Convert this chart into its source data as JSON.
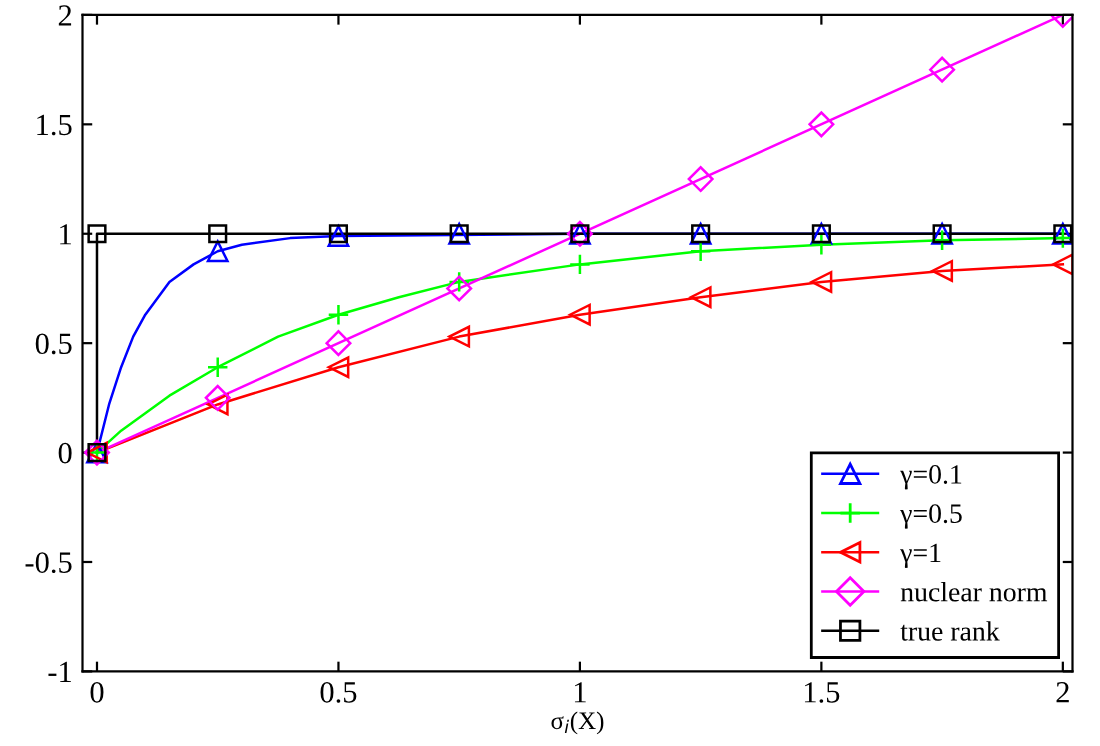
{
  "chart_data": {
    "type": "line",
    "xlabel": "σ$_{i}$(X)",
    "xlim": [
      -0.03,
      2.02
    ],
    "ylim": [
      -1,
      2
    ],
    "xticks": [
      0,
      0.5,
      1,
      1.5,
      2
    ],
    "yticks": [
      -1,
      -0.5,
      0,
      0.5,
      1,
      1.5,
      2
    ],
    "grid": false,
    "legend": "bottom right",
    "series": [
      {
        "color": "#0000ff",
        "x": [
          0,
          0.025,
          0.05,
          0.075,
          0.1,
          0.15,
          0.2,
          0.25,
          0.3,
          0.4,
          0.5,
          1,
          2
        ],
        "values": [
          0,
          0.22,
          0.39,
          0.53,
          0.63,
          0.78,
          0.86,
          0.92,
          0.95,
          0.98,
          0.99,
          1,
          1
        ]
      },
      {
        "color": "#00ff00",
        "x": [
          0,
          0.05,
          0.1,
          0.15,
          0.25,
          0.375,
          0.5,
          0.625,
          0.75,
          1,
          1.25,
          1.5,
          1.75,
          2
        ],
        "values": [
          0,
          0.1,
          0.18,
          0.26,
          0.39,
          0.53,
          0.63,
          0.71,
          0.78,
          0.86,
          0.92,
          0.95,
          0.97,
          0.98
        ]
      },
      {
        "color": "#ff0000",
        "x": [
          0,
          0.25,
          0.5,
          0.75,
          1,
          1.25,
          1.5,
          1.75,
          2
        ],
        "values": [
          0,
          0.22,
          0.39,
          0.53,
          0.63,
          0.71,
          0.78,
          0.83,
          0.86
        ]
      },
      {
        "color": "#ff00ff",
        "x": [
          0,
          2
        ],
        "values": [
          0,
          2
        ]
      },
      {
        "color": "#000000",
        "x": [
          0,
          0,
          2
        ],
        "values": [
          0,
          1,
          1
        ]
      },
      {
        "type": "scatter",
        "name": "γ=0.1",
        "color": "#0000ff",
        "marker": "triangle",
        "x": [
          0,
          0.25,
          0.5,
          0.75,
          1,
          1.25,
          1.5,
          1.75,
          2
        ],
        "values": [
          0,
          0.92,
          0.99,
          1,
          1,
          1,
          1,
          1,
          1
        ]
      },
      {
        "type": "scatter",
        "name": "γ=0.5",
        "color": "#00ff00",
        "marker": "cross",
        "x": [
          0,
          0.25,
          0.5,
          0.75,
          1,
          1.25,
          1.5,
          1.75,
          2
        ],
        "values": [
          0,
          0.39,
          0.63,
          0.78,
          0.86,
          0.92,
          0.95,
          0.97,
          0.98
        ]
      },
      {
        "type": "scatter",
        "name": "γ=1",
        "color": "#ff0000",
        "marker": "triangle_left",
        "x": [
          0,
          0.25,
          0.5,
          0.75,
          1,
          1.25,
          1.5,
          1.75,
          2
        ],
        "values": [
          0,
          0.22,
          0.39,
          0.53,
          0.63,
          0.71,
          0.78,
          0.83,
          0.86
        ]
      },
      {
        "type": "scatter",
        "name": "nuclear norm",
        "color": "#ff00ff",
        "marker": "diamond",
        "x": [
          0,
          0.25,
          0.5,
          0.75,
          1,
          1.25,
          1.5,
          1.75,
          2
        ],
        "values": [
          0,
          0.25,
          0.5,
          0.75,
          1,
          1.25,
          1.5,
          1.75,
          2
        ]
      },
      {
        "type": "scatter",
        "name": "true rank",
        "color": "#000000",
        "marker": "square",
        "x": [
          0,
          0,
          0.25,
          0.5,
          0.75,
          1,
          1.25,
          1.5,
          1.75,
          2
        ],
        "values": [
          0,
          1,
          1,
          1,
          1,
          1,
          1,
          1,
          1,
          1
        ]
      }
    ]
  }
}
